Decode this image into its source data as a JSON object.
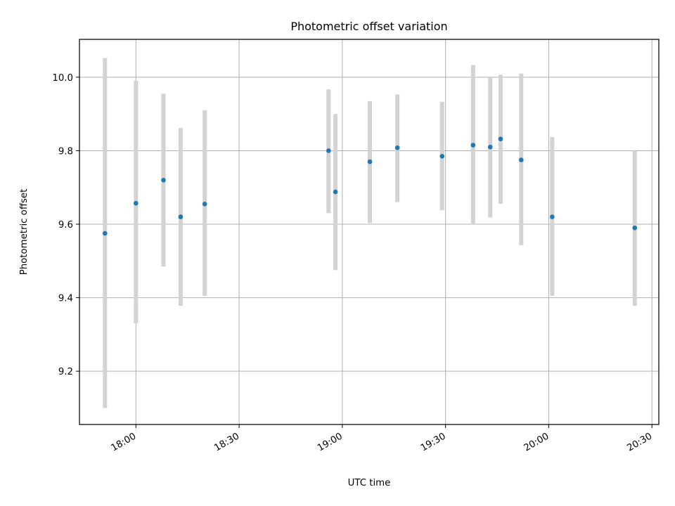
{
  "chart_data": {
    "type": "scatter",
    "title": "Photometric offset variation",
    "xlabel": "UTC time",
    "ylabel": "Photometric offset",
    "xlim": [
      "17:43:35",
      "20:32:00"
    ],
    "ylim": [
      9.055,
      10.103
    ],
    "x_ticks": [
      "18:00",
      "18:30",
      "19:00",
      "19:30",
      "20:00",
      "20:30"
    ],
    "y_ticks": [
      "9.2",
      "9.4",
      "9.6",
      "9.8",
      "10.0"
    ],
    "grid": true,
    "colors": {
      "point": "#1f77b4",
      "errorbar": "#d3d3d3",
      "grid": "#b0b0b0"
    },
    "points": [
      {
        "x": "17:51",
        "y": 9.575,
        "ylow": 9.1,
        "yhigh": 10.052
      },
      {
        "x": "18:00",
        "y": 9.657,
        "ylow": 9.33,
        "yhigh": 9.99
      },
      {
        "x": "18:08",
        "y": 9.72,
        "ylow": 9.485,
        "yhigh": 9.955
      },
      {
        "x": "18:13",
        "y": 9.62,
        "ylow": 9.378,
        "yhigh": 9.862
      },
      {
        "x": "18:20",
        "y": 9.655,
        "ylow": 9.405,
        "yhigh": 9.91
      },
      {
        "x": "18:56",
        "y": 9.8,
        "ylow": 9.63,
        "yhigh": 9.967
      },
      {
        "x": "18:58",
        "y": 9.688,
        "ylow": 9.475,
        "yhigh": 9.9
      },
      {
        "x": "19:08",
        "y": 9.77,
        "ylow": 9.603,
        "yhigh": 9.935
      },
      {
        "x": "19:16",
        "y": 9.808,
        "ylow": 9.66,
        "yhigh": 9.953
      },
      {
        "x": "19:29",
        "y": 9.785,
        "ylow": 9.638,
        "yhigh": 9.933
      },
      {
        "x": "19:38",
        "y": 9.815,
        "ylow": 9.6,
        "yhigh": 10.033
      },
      {
        "x": "19:43",
        "y": 9.81,
        "ylow": 9.618,
        "yhigh": 10.002
      },
      {
        "x": "19:46",
        "y": 9.832,
        "ylow": 9.655,
        "yhigh": 10.007
      },
      {
        "x": "19:52",
        "y": 9.775,
        "ylow": 9.543,
        "yhigh": 10.01
      },
      {
        "x": "20:01",
        "y": 9.62,
        "ylow": 9.405,
        "yhigh": 9.837
      },
      {
        "x": "20:25",
        "y": 9.59,
        "ylow": 9.378,
        "yhigh": 9.8
      }
    ]
  }
}
